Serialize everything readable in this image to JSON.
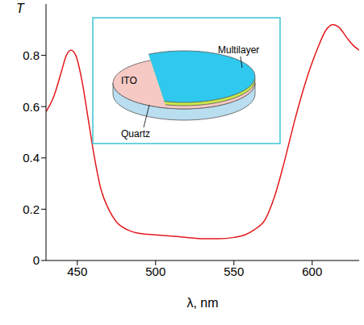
{
  "chart_data": {
    "type": "line",
    "x_label": "λ, nm",
    "y_label": "T",
    "annotations": [
      "ITO",
      "Multilayer",
      "Quartz"
    ],
    "x": [
      430,
      435,
      440,
      443,
      446,
      449,
      453,
      457,
      461,
      465,
      470,
      475,
      482,
      490,
      500,
      510,
      520,
      530,
      540,
      550,
      557,
      563,
      570,
      576,
      582,
      589,
      596,
      603,
      609,
      613,
      617,
      622,
      626,
      630
    ],
    "values": [
      0.58,
      0.64,
      0.74,
      0.8,
      0.82,
      0.8,
      0.7,
      0.55,
      0.4,
      0.28,
      0.2,
      0.15,
      0.12,
      0.105,
      0.1,
      0.095,
      0.09,
      0.085,
      0.085,
      0.09,
      0.1,
      0.12,
      0.16,
      0.25,
      0.38,
      0.55,
      0.7,
      0.82,
      0.9,
      0.92,
      0.91,
      0.87,
      0.84,
      0.82
    ],
    "color": "#e3191c",
    "xlim": [
      430,
      630
    ],
    "xticks": [
      450,
      500,
      550,
      600
    ],
    "ylim": [
      0,
      1
    ],
    "yticks": [
      0,
      0.2,
      0.4,
      0.6,
      0.8
    ],
    "grid": false
  }
}
